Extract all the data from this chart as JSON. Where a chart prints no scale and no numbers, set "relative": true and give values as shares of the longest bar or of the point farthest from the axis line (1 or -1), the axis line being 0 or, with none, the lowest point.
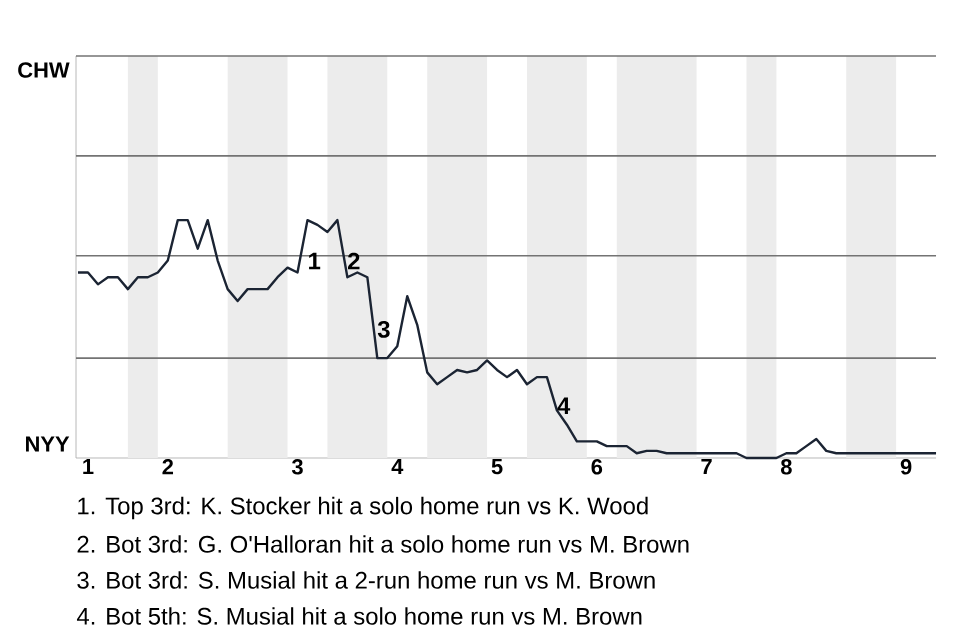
{
  "chart_data": {
    "type": "line",
    "relative": true,
    "categories": [
      null,
      "1",
      null,
      null,
      null,
      null,
      null,
      null,
      null,
      "2",
      null,
      null,
      null,
      null,
      null,
      null,
      null,
      null,
      null,
      null,
      null,
      null,
      "3",
      null,
      null,
      null,
      null,
      null,
      null,
      null,
      null,
      null,
      "4",
      null,
      null,
      null,
      null,
      null,
      null,
      null,
      null,
      null,
      "5",
      null,
      null,
      null,
      null,
      null,
      null,
      null,
      null,
      null,
      "6",
      null,
      null,
      null,
      null,
      null,
      null,
      null,
      null,
      null,
      null,
      "7",
      null,
      null,
      null,
      null,
      null,
      null,
      null,
      "8",
      null,
      null,
      null,
      null,
      null,
      null,
      null,
      null,
      null,
      null,
      null,
      "9",
      null,
      null,
      null
    ],
    "marker": "none",
    "line_style": "solid",
    "ref_lines": [
      {
        "axis": "y",
        "value": 0.42,
        "color": "#737373"
      },
      {
        "axis": "y",
        "value": 0.85,
        "color": "#737373"
      },
      {
        "axis": "y",
        "value": 1.27,
        "color": "#737373"
      },
      {
        "axis": "y",
        "value": 1.69,
        "color": "#737373"
      }
    ],
    "series": [
      {
        "color": "#1b2433",
        "values": [
          0.78,
          0.78,
          0.73,
          0.76,
          0.76,
          0.71,
          0.76,
          0.76,
          0.78,
          0.83,
          1,
          1,
          0.88,
          1,
          0.83,
          0.71,
          0.66,
          0.71,
          0.71,
          0.71,
          0.76,
          0.8,
          0.78,
          1,
          0.98,
          0.95,
          1,
          0.76,
          0.78,
          0.76,
          0.42,
          0.42,
          0.47,
          0.68,
          0.56,
          0.36,
          0.31,
          0.34,
          0.37,
          0.36,
          0.37,
          0.41,
          0.37,
          0.34,
          0.37,
          0.31,
          0.34,
          0.34,
          0.2,
          0.14,
          0.07,
          0.07,
          0.07,
          0.05,
          0.05,
          0.05,
          0.02,
          0.03,
          0.03,
          0.02,
          0.02,
          0.02,
          0.02,
          0.02,
          0.02,
          0.02,
          0.02,
          0,
          0,
          0,
          0,
          0.02,
          0.02,
          0.05,
          0.08,
          0.03,
          0.02,
          0.02,
          0.02,
          0.02,
          0.02,
          0.02,
          0.02,
          0.02,
          0.02,
          0.02,
          0.02
        ]
      }
    ],
    "annotations": [
      "CHW",
      "NYY",
      "1",
      "2",
      "3",
      "4",
      "1. Top 3rd: K. Stocker hit a solo home run vs K. Wood",
      "2. Bot 3rd: G. O'Halloran hit a solo home run vs M. Brown",
      "3. Bot 3rd: S. Musial hit a 2-run home run vs M. Brown",
      "4. Bot 5th: S. Musial hit a solo home run vs M. Brown"
    ]
  }
}
